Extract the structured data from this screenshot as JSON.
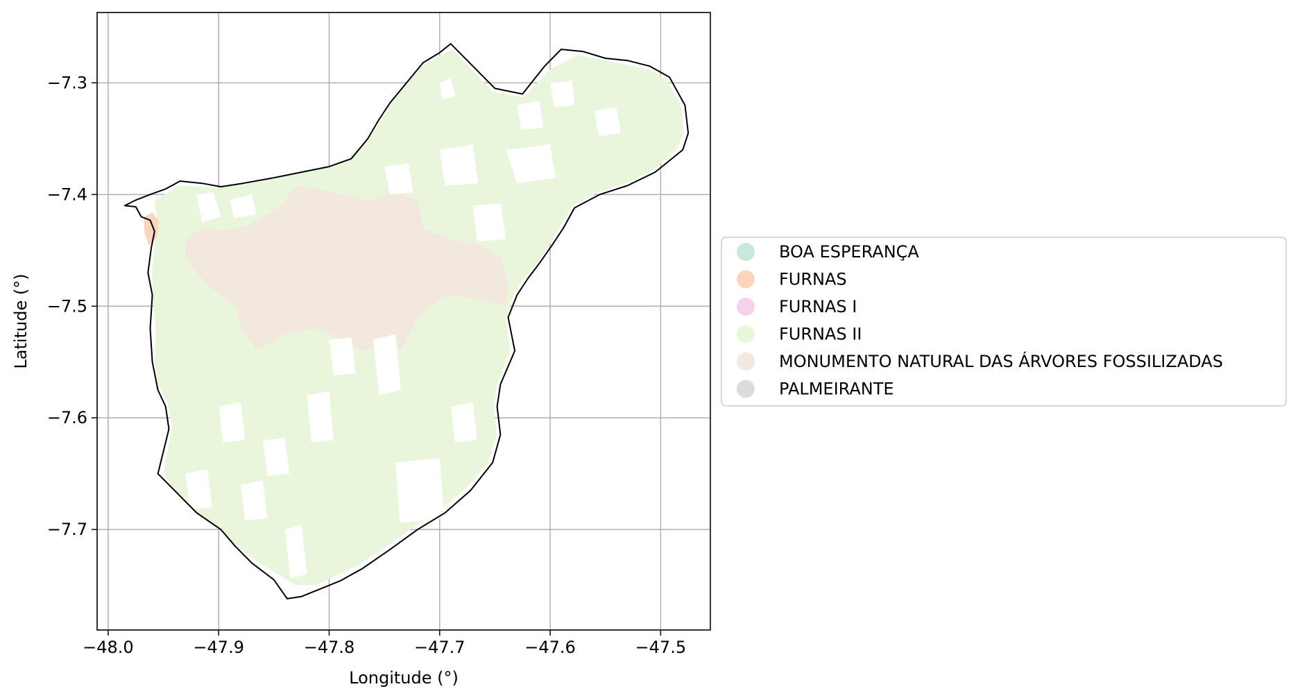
{
  "chart_data": {
    "type": "map",
    "xlabel": "Longitude (°)",
    "ylabel": "Latitude (°)",
    "xlim": [
      -48.01,
      -47.455
    ],
    "ylim": [
      -7.79,
      -7.237
    ],
    "grid": true,
    "x_ticks": [
      {
        "value": -48.0,
        "label": "−48.0"
      },
      {
        "value": -47.9,
        "label": "−47.9"
      },
      {
        "value": -47.8,
        "label": "−47.8"
      },
      {
        "value": -47.7,
        "label": "−47.7"
      },
      {
        "value": -47.6,
        "label": "−47.6"
      },
      {
        "value": -47.5,
        "label": "−47.5"
      }
    ],
    "y_ticks": [
      {
        "value": -7.3,
        "label": "−7.3"
      },
      {
        "value": -7.4,
        "label": "−7.4"
      },
      {
        "value": -7.5,
        "label": "−7.5"
      },
      {
        "value": -7.6,
        "label": "−7.6"
      },
      {
        "value": -7.7,
        "label": "−7.7"
      }
    ],
    "legend": {
      "placement": "right",
      "entries": [
        {
          "label": "BOA ESPERANÇA",
          "color": "#c7e9dc"
        },
        {
          "label": "FURNAS",
          "color": "#fcd5bc"
        },
        {
          "label": "FURNAS I",
          "color": "#f3d3ea"
        },
        {
          "label": "FURNAS II",
          "color": "#eaf6dc"
        },
        {
          "label": "MONUMENTO NATURAL DAS ÁRVORES FOSSILIZADAS",
          "color": "#f3e8dd"
        },
        {
          "label": "PALMEIRANTE",
          "color": "#dcdcdc"
        }
      ]
    },
    "boundary": [
      [
        -47.985,
        -7.41
      ],
      [
        -47.975,
        -7.411
      ],
      [
        -47.97,
        -7.42
      ],
      [
        -47.962,
        -7.423
      ],
      [
        -47.958,
        -7.433
      ],
      [
        -47.961,
        -7.448
      ],
      [
        -47.964,
        -7.47
      ],
      [
        -47.96,
        -7.49
      ],
      [
        -47.962,
        -7.52
      ],
      [
        -47.96,
        -7.55
      ],
      [
        -47.955,
        -7.575
      ],
      [
        -47.948,
        -7.59
      ],
      [
        -47.945,
        -7.61
      ],
      [
        -47.95,
        -7.63
      ],
      [
        -47.955,
        -7.65
      ],
      [
        -47.935,
        -7.67
      ],
      [
        -47.92,
        -7.685
      ],
      [
        -47.898,
        -7.7
      ],
      [
        -47.885,
        -7.715
      ],
      [
        -47.87,
        -7.73
      ],
      [
        -47.85,
        -7.745
      ],
      [
        -47.838,
        -7.762
      ],
      [
        -47.825,
        -7.76
      ],
      [
        -47.81,
        -7.754
      ],
      [
        -47.79,
        -7.746
      ],
      [
        -47.77,
        -7.735
      ],
      [
        -47.745,
        -7.718
      ],
      [
        -47.72,
        -7.7
      ],
      [
        -47.695,
        -7.685
      ],
      [
        -47.672,
        -7.665
      ],
      [
        -47.652,
        -7.64
      ],
      [
        -47.645,
        -7.615
      ],
      [
        -47.648,
        -7.59
      ],
      [
        -47.645,
        -7.57
      ],
      [
        -47.632,
        -7.54
      ],
      [
        -47.638,
        -7.51
      ],
      [
        -47.63,
        -7.49
      ],
      [
        -47.62,
        -7.475
      ],
      [
        -47.61,
        -7.462
      ],
      [
        -47.598,
        -7.445
      ],
      [
        -47.588,
        -7.43
      ],
      [
        -47.578,
        -7.412
      ],
      [
        -47.555,
        -7.4
      ],
      [
        -47.53,
        -7.392
      ],
      [
        -47.505,
        -7.38
      ],
      [
        -47.48,
        -7.36
      ],
      [
        -47.475,
        -7.345
      ],
      [
        -47.478,
        -7.32
      ],
      [
        -47.492,
        -7.295
      ],
      [
        -47.51,
        -7.285
      ],
      [
        -47.53,
        -7.28
      ],
      [
        -47.55,
        -7.278
      ],
      [
        -47.57,
        -7.272
      ],
      [
        -47.59,
        -7.27
      ],
      [
        -47.605,
        -7.285
      ],
      [
        -47.625,
        -7.31
      ],
      [
        -47.65,
        -7.305
      ],
      [
        -47.675,
        -7.28
      ],
      [
        -47.69,
        -7.265
      ],
      [
        -47.7,
        -7.273
      ],
      [
        -47.715,
        -7.282
      ],
      [
        -47.73,
        -7.3
      ],
      [
        -47.745,
        -7.318
      ],
      [
        -47.755,
        -7.333
      ],
      [
        -47.765,
        -7.35
      ],
      [
        -47.78,
        -7.368
      ],
      [
        -47.8,
        -7.375
      ],
      [
        -47.825,
        -7.38
      ],
      [
        -47.85,
        -7.385
      ],
      [
        -47.878,
        -7.39
      ],
      [
        -47.898,
        -7.393
      ],
      [
        -47.915,
        -7.39
      ],
      [
        -47.935,
        -7.388
      ],
      [
        -47.948,
        -7.395
      ],
      [
        -47.962,
        -7.4
      ],
      [
        -47.975,
        -7.405
      ],
      [
        -47.985,
        -7.41
      ]
    ],
    "regions": [
      {
        "name": "FURNAS II",
        "color": "#eaf6dc",
        "points": [
          [
            -47.958,
            -7.405
          ],
          [
            -47.935,
            -7.392
          ],
          [
            -47.9,
            -7.394
          ],
          [
            -47.86,
            -7.386
          ],
          [
            -47.82,
            -7.379
          ],
          [
            -47.79,
            -7.372
          ],
          [
            -47.765,
            -7.352
          ],
          [
            -47.752,
            -7.332
          ],
          [
            -47.735,
            -7.306
          ],
          [
            -47.718,
            -7.286
          ],
          [
            -47.7,
            -7.276
          ],
          [
            -47.688,
            -7.27
          ],
          [
            -47.676,
            -7.283
          ],
          [
            -47.652,
            -7.308
          ],
          [
            -47.624,
            -7.313
          ],
          [
            -47.6,
            -7.288
          ],
          [
            -47.575,
            -7.275
          ],
          [
            -47.54,
            -7.282
          ],
          [
            -47.51,
            -7.288
          ],
          [
            -47.494,
            -7.298
          ],
          [
            -47.481,
            -7.322
          ],
          [
            -47.479,
            -7.345
          ],
          [
            -47.485,
            -7.358
          ],
          [
            -47.506,
            -7.378
          ],
          [
            -47.532,
            -7.39
          ],
          [
            -47.556,
            -7.398
          ],
          [
            -47.58,
            -7.41
          ],
          [
            -47.592,
            -7.43
          ],
          [
            -47.602,
            -7.447
          ],
          [
            -47.614,
            -7.464
          ],
          [
            -47.626,
            -7.478
          ],
          [
            -47.634,
            -7.492
          ],
          [
            -47.64,
            -7.512
          ],
          [
            -47.636,
            -7.54
          ],
          [
            -47.648,
            -7.57
          ],
          [
            -47.651,
            -7.592
          ],
          [
            -47.648,
            -7.615
          ],
          [
            -47.656,
            -7.64
          ],
          [
            -47.676,
            -7.663
          ],
          [
            -47.7,
            -7.683
          ],
          [
            -47.728,
            -7.701
          ],
          [
            -47.752,
            -7.718
          ],
          [
            -47.775,
            -7.733
          ],
          [
            -47.795,
            -7.742
          ],
          [
            -47.812,
            -7.75
          ],
          [
            -47.83,
            -7.75
          ],
          [
            -47.85,
            -7.738
          ],
          [
            -47.872,
            -7.724
          ],
          [
            -47.889,
            -7.71
          ],
          [
            -47.903,
            -7.696
          ],
          [
            -47.925,
            -7.68
          ],
          [
            -47.942,
            -7.664
          ],
          [
            -47.95,
            -7.648
          ],
          [
            -47.946,
            -7.628
          ],
          [
            -47.942,
            -7.608
          ],
          [
            -47.946,
            -7.588
          ],
          [
            -47.955,
            -7.57
          ],
          [
            -47.958,
            -7.55
          ],
          [
            -47.957,
            -7.52
          ],
          [
            -47.96,
            -7.49
          ],
          [
            -47.96,
            -7.465
          ],
          [
            -47.958,
            -7.44
          ],
          [
            -47.956,
            -7.42
          ],
          [
            -47.958,
            -7.405
          ]
        ]
      },
      {
        "name": "MONUMENTO NATURAL DAS ÁRVORES FOSSILIZADAS",
        "color": "#f3e8dd",
        "points": [
          [
            -47.93,
            -7.44
          ],
          [
            -47.915,
            -7.43
          ],
          [
            -47.895,
            -7.432
          ],
          [
            -47.875,
            -7.428
          ],
          [
            -47.86,
            -7.42
          ],
          [
            -47.845,
            -7.412
          ],
          [
            -47.83,
            -7.392
          ],
          [
            -47.81,
            -7.395
          ],
          [
            -47.79,
            -7.4
          ],
          [
            -47.765,
            -7.405
          ],
          [
            -47.74,
            -7.398
          ],
          [
            -47.72,
            -7.405
          ],
          [
            -47.715,
            -7.43
          ],
          [
            -47.69,
            -7.44
          ],
          [
            -47.665,
            -7.445
          ],
          [
            -47.645,
            -7.455
          ],
          [
            -47.638,
            -7.48
          ],
          [
            -47.64,
            -7.5
          ],
          [
            -47.66,
            -7.495
          ],
          [
            -47.69,
            -7.49
          ],
          [
            -47.71,
            -7.5
          ],
          [
            -47.725,
            -7.52
          ],
          [
            -47.735,
            -7.54
          ],
          [
            -47.75,
            -7.535
          ],
          [
            -47.77,
            -7.54
          ],
          [
            -47.79,
            -7.53
          ],
          [
            -47.81,
            -7.52
          ],
          [
            -47.84,
            -7.525
          ],
          [
            -47.865,
            -7.54
          ],
          [
            -47.88,
            -7.52
          ],
          [
            -47.885,
            -7.5
          ],
          [
            -47.905,
            -7.485
          ],
          [
            -47.92,
            -7.47
          ],
          [
            -47.93,
            -7.455
          ],
          [
            -47.93,
            -7.44
          ]
        ]
      },
      {
        "name": "FURNAS",
        "color": "#fcd5bc",
        "points": [
          [
            -47.968,
            -7.42
          ],
          [
            -47.96,
            -7.416
          ],
          [
            -47.954,
            -7.424
          ],
          [
            -47.956,
            -7.438
          ],
          [
            -47.963,
            -7.446
          ],
          [
            -47.967,
            -7.435
          ],
          [
            -47.968,
            -7.42
          ]
        ]
      }
    ],
    "gaps": [
      [
        [
          -47.92,
          -7.4
        ],
        [
          -47.905,
          -7.398
        ],
        [
          -47.898,
          -7.42
        ],
        [
          -47.915,
          -7.425
        ]
      ],
      [
        [
          -47.89,
          -7.405
        ],
        [
          -47.87,
          -7.4
        ],
        [
          -47.866,
          -7.418
        ],
        [
          -47.886,
          -7.421
        ]
      ],
      [
        [
          -47.75,
          -7.375
        ],
        [
          -47.728,
          -7.372
        ],
        [
          -47.724,
          -7.398
        ],
        [
          -47.745,
          -7.4
        ]
      ],
      [
        [
          -47.7,
          -7.36
        ],
        [
          -47.67,
          -7.355
        ],
        [
          -47.665,
          -7.39
        ],
        [
          -47.695,
          -7.392
        ]
      ],
      [
        [
          -47.64,
          -7.36
        ],
        [
          -47.6,
          -7.355
        ],
        [
          -47.595,
          -7.385
        ],
        [
          -47.63,
          -7.39
        ]
      ],
      [
        [
          -47.7,
          -7.3
        ],
        [
          -47.69,
          -7.296
        ],
        [
          -47.686,
          -7.312
        ],
        [
          -47.698,
          -7.315
        ]
      ],
      [
        [
          -47.6,
          -7.3
        ],
        [
          -47.58,
          -7.298
        ],
        [
          -47.578,
          -7.32
        ],
        [
          -47.596,
          -7.322
        ]
      ],
      [
        [
          -47.63,
          -7.32
        ],
        [
          -47.61,
          -7.316
        ],
        [
          -47.606,
          -7.34
        ],
        [
          -47.626,
          -7.342
        ]
      ],
      [
        [
          -47.56,
          -7.325
        ],
        [
          -47.54,
          -7.322
        ],
        [
          -47.536,
          -7.345
        ],
        [
          -47.556,
          -7.348
        ]
      ],
      [
        [
          -47.67,
          -7.41
        ],
        [
          -47.645,
          -7.408
        ],
        [
          -47.64,
          -7.44
        ],
        [
          -47.666,
          -7.442
        ]
      ],
      [
        [
          -47.76,
          -7.53
        ],
        [
          -47.74,
          -7.525
        ],
        [
          -47.735,
          -7.575
        ],
        [
          -47.755,
          -7.58
        ]
      ],
      [
        [
          -47.8,
          -7.53
        ],
        [
          -47.78,
          -7.528
        ],
        [
          -47.776,
          -7.56
        ],
        [
          -47.796,
          -7.562
        ]
      ],
      [
        [
          -47.82,
          -7.58
        ],
        [
          -47.8,
          -7.576
        ],
        [
          -47.796,
          -7.62
        ],
        [
          -47.816,
          -7.622
        ]
      ],
      [
        [
          -47.9,
          -7.59
        ],
        [
          -47.88,
          -7.586
        ],
        [
          -47.876,
          -7.62
        ],
        [
          -47.896,
          -7.622
        ]
      ],
      [
        [
          -47.86,
          -7.62
        ],
        [
          -47.84,
          -7.618
        ],
        [
          -47.836,
          -7.65
        ],
        [
          -47.856,
          -7.652
        ]
      ],
      [
        [
          -47.88,
          -7.66
        ],
        [
          -47.86,
          -7.656
        ],
        [
          -47.856,
          -7.69
        ],
        [
          -47.876,
          -7.692
        ]
      ],
      [
        [
          -47.74,
          -7.64
        ],
        [
          -47.7,
          -7.636
        ],
        [
          -47.696,
          -7.69
        ],
        [
          -47.736,
          -7.694
        ]
      ],
      [
        [
          -47.69,
          -7.59
        ],
        [
          -47.67,
          -7.586
        ],
        [
          -47.666,
          -7.62
        ],
        [
          -47.686,
          -7.622
        ]
      ],
      [
        [
          -47.93,
          -7.65
        ],
        [
          -47.91,
          -7.646
        ],
        [
          -47.906,
          -7.68
        ],
        [
          -47.926,
          -7.682
        ]
      ],
      [
        [
          -47.84,
          -7.7
        ],
        [
          -47.825,
          -7.696
        ],
        [
          -47.82,
          -7.74
        ],
        [
          -47.835,
          -7.744
        ]
      ]
    ]
  }
}
